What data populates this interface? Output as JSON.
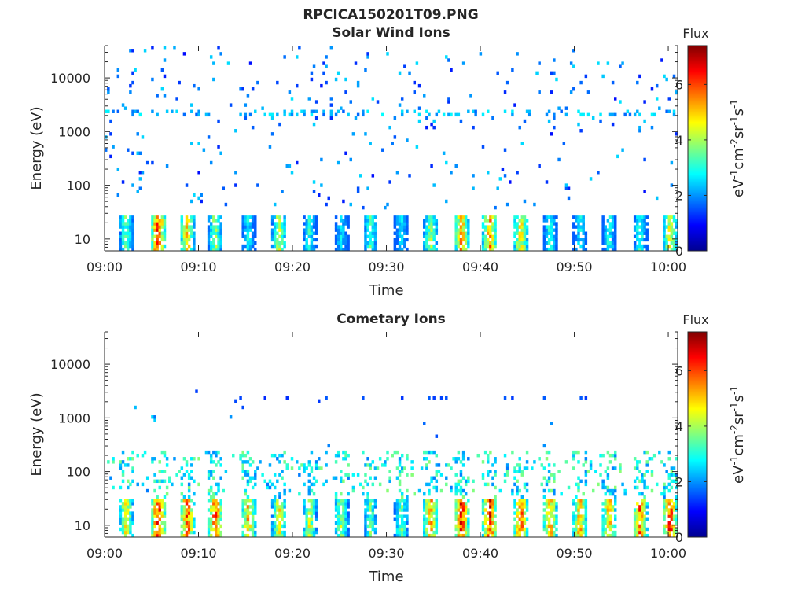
{
  "figure": {
    "title": "RPCICA150201T09.PNG",
    "colors": {
      "axis": "#262626",
      "background": "#ffffff"
    },
    "colormap": "jet"
  },
  "chart_data": [
    {
      "type": "heatmap",
      "title": "Solar Wind Ions",
      "xlabel": "Time",
      "ylabel": "Energy (eV)",
      "x_time_range": [
        "09:00",
        "10:01"
      ],
      "x_ticks": [
        "09:00",
        "09:10",
        "09:20",
        "09:30",
        "09:40",
        "09:50",
        "10:00"
      ],
      "y_scale": "log",
      "ylim": [
        6,
        40000
      ],
      "y_ticks": [
        {
          "value": 10,
          "label": "10"
        },
        {
          "value": 100,
          "label": "100"
        },
        {
          "value": 1000,
          "label": "1000"
        },
        {
          "value": 10000,
          "label": "10000"
        }
      ],
      "colorbar": {
        "title": "Flux",
        "label": "eV-1cm-2sr-1s-1",
        "range": [
          0,
          7.4
        ],
        "ticks": [
          "0",
          "2",
          "4",
          "6"
        ]
      },
      "pulses_min": [
        2.3,
        5.7,
        8.8,
        11.8,
        15.3,
        18.6,
        21.8,
        25.2,
        28.3,
        31.6,
        34.7,
        38.0,
        41.0,
        44.3,
        47.4,
        50.6,
        53.7,
        57.0,
        60.2
      ],
      "pulse_peak_flux": [
        3.8,
        6.7,
        5.4,
        4.2,
        3.0,
        4.6,
        3.2,
        2.8,
        3.6,
        2.9,
        4.3,
        5.8,
        5.9,
        5.2,
        3.4,
        3.0,
        3.2,
        3.5,
        5.0
      ],
      "low_energy_band_ev": [
        6,
        28
      ],
      "sparse_high_energy_flux": [
        1,
        2.6
      ],
      "lines_min": [
        0,
        61
      ],
      "line_energy_ev": [
        2000,
        2600
      ]
    },
    {
      "type": "heatmap",
      "title": "Cometary Ions",
      "xlabel": "Time",
      "ylabel": "Energy (eV)",
      "x_time_range": [
        "09:00",
        "10:01"
      ],
      "x_ticks": [
        "09:00",
        "09:10",
        "09:20",
        "09:30",
        "09:40",
        "09:50",
        "10:00"
      ],
      "y_scale": "log",
      "ylim": [
        6,
        40000
      ],
      "y_ticks": [
        {
          "value": 10,
          "label": "10"
        },
        {
          "value": 100,
          "label": "100"
        },
        {
          "value": 1000,
          "label": "1000"
        },
        {
          "value": 10000,
          "label": "10000"
        }
      ],
      "colorbar": {
        "title": "Flux",
        "label": "eV-1cm-2sr-1s-1",
        "range": [
          0,
          7.4
        ],
        "ticks": [
          "0",
          "2",
          "4",
          "6"
        ]
      },
      "pulses_min": [
        2.3,
        5.7,
        8.8,
        11.8,
        15.3,
        18.6,
        21.8,
        25.2,
        28.3,
        31.6,
        34.7,
        38.0,
        41.0,
        44.3,
        47.4,
        50.6,
        53.7,
        57.0,
        60.2
      ],
      "pulse_peak_flux": [
        5.0,
        7.0,
        6.6,
        6.6,
        5.4,
        5.0,
        4.6,
        4.3,
        3.8,
        3.9,
        5.8,
        6.9,
        6.8,
        6.4,
        5.8,
        5.6,
        5.6,
        6.2,
        6.8
      ],
      "low_energy_band_ev": [
        6,
        30
      ],
      "mid_energy_band_ev": [
        35,
        250
      ],
      "mid_energy_flux": [
        1.8,
        3.8
      ],
      "lines_min": [
        14,
        52
      ],
      "line_energy_ev": [
        2200,
        2600
      ]
    }
  ]
}
